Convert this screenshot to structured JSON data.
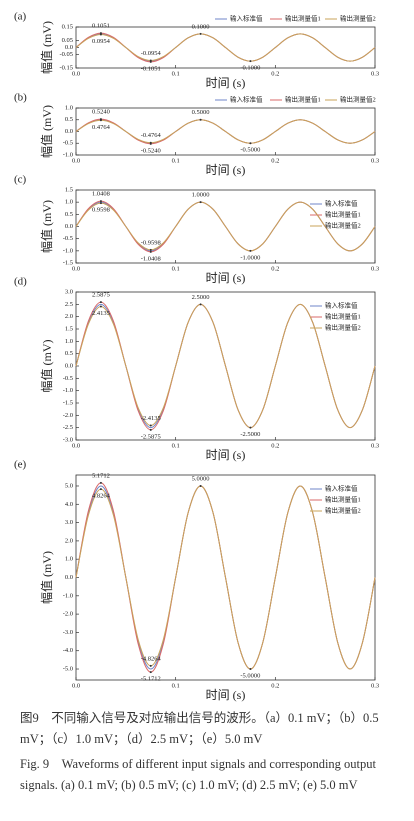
{
  "chart_data": [
    {
      "type": "line",
      "panel": "(a)",
      "xlabel": "时间 (s)",
      "ylabel": "幅值 (mV)",
      "legend": "top",
      "xlim": [
        0,
        0.3
      ],
      "ylim": [
        -0.15,
        0.15
      ],
      "xticks": [
        {
          "value": 0,
          "label": "0.0"
        },
        0.1,
        0.2,
        0.3
      ],
      "yticks": [
        -0.15,
        {
          "value": -0.05,
          "label": "-0.05"
        },
        {
          "value": 0,
          "label": "0.0"
        },
        0.05,
        0.15
      ],
      "x": [
        0,
        0.0125,
        0.025,
        0.0375,
        0.05,
        0.0625,
        0.075,
        0.0875,
        0.1,
        0.1125,
        0.125,
        0.1375,
        0.15,
        0.1625,
        0.175,
        0.1875,
        0.2,
        0.2125,
        0.225,
        0.2375,
        0.25,
        0.2625,
        0.275,
        0.2875,
        0.3
      ],
      "series": [
        {
          "name": "输入标准值",
          "color": "#6f86c9",
          "values": [
            0,
            0.0707,
            0.1,
            0.0707,
            0,
            -0.0707,
            -0.1,
            -0.0707,
            0,
            0.0707,
            0.1,
            0.0707,
            0,
            -0.0707,
            -0.1,
            -0.0707,
            0,
            0.0707,
            0.1,
            0.0707,
            0,
            -0.0707,
            -0.1,
            -0.0707,
            0
          ]
        },
        {
          "name": "输出测量值1",
          "color": "#d9696a",
          "values": [
            0,
            0.0743,
            0.1051,
            0.0743,
            0,
            -0.0743,
            -0.1051,
            -0.0743,
            0,
            0.0707,
            0.1,
            0.0707,
            0,
            -0.0707,
            -0.1,
            -0.0707,
            0,
            0.0707,
            0.1,
            0.0707,
            0,
            -0.0707,
            -0.1,
            -0.0707,
            0
          ]
        },
        {
          "name": "输出测量值2",
          "color": "#c9a35a",
          "values": [
            0,
            0.0675,
            0.0954,
            0.0675,
            0,
            -0.0675,
            -0.0954,
            -0.0675,
            0,
            0.0707,
            0.1,
            0.0707,
            0,
            -0.0707,
            -0.1,
            -0.0707,
            0,
            0.0707,
            0.1,
            0.0707,
            0,
            -0.0707,
            -0.1,
            -0.0707,
            0
          ]
        }
      ],
      "annotations": [
        {
          "x": 0.025,
          "value": 0.1051,
          "label": "0.1051"
        },
        {
          "x": 0.025,
          "value": 0.0954,
          "label": "0.0954"
        },
        {
          "x": 0.075,
          "value": -0.0954,
          "label": "-0.0954"
        },
        {
          "x": 0.075,
          "value": -0.1051,
          "label": "-0.1051"
        },
        {
          "x": 0.125,
          "value": 0.1,
          "label": "0.1000"
        },
        {
          "x": 0.175,
          "value": -0.1,
          "label": "-0.1000"
        }
      ]
    },
    {
      "type": "line",
      "panel": "(b)",
      "xlabel": "时间 (s)",
      "ylabel": "幅值 (mV)",
      "legend": "top",
      "xlim": [
        0,
        0.3
      ],
      "ylim": [
        -1,
        1
      ],
      "xticks": [
        {
          "value": 0,
          "label": "0.0"
        },
        0.1,
        0.2,
        0.3
      ],
      "yticks": [
        {
          "value": -1,
          "label": "-1.0"
        },
        -0.5,
        {
          "value": 0,
          "label": "0.0"
        },
        0.5,
        {
          "value": 1,
          "label": "1.0"
        }
      ],
      "x": [
        0,
        0.0125,
        0.025,
        0.0375,
        0.05,
        0.0625,
        0.075,
        0.0875,
        0.1,
        0.1125,
        0.125,
        0.1375,
        0.15,
        0.1625,
        0.175,
        0.1875,
        0.2,
        0.2125,
        0.225,
        0.2375,
        0.25,
        0.2625,
        0.275,
        0.2875,
        0.3
      ],
      "series": [
        {
          "name": "输入标准值",
          "color": "#6f86c9",
          "values": [
            0,
            0.3536,
            0.5,
            0.3536,
            0,
            -0.3536,
            -0.5,
            -0.3536,
            0,
            0.3536,
            0.5,
            0.3536,
            0,
            -0.3536,
            -0.5,
            -0.3536,
            0,
            0.3536,
            0.5,
            0.3536,
            0,
            -0.3536,
            -0.5,
            -0.3536,
            0
          ]
        },
        {
          "name": "输出测量值1",
          "color": "#d9696a",
          "values": [
            0,
            0.3705,
            0.524,
            0.3705,
            0,
            -0.3705,
            -0.524,
            -0.3705,
            0,
            0.3536,
            0.5,
            0.3536,
            0,
            -0.3536,
            -0.5,
            -0.3536,
            0,
            0.3536,
            0.5,
            0.3536,
            0,
            -0.3536,
            -0.5,
            -0.3536,
            0
          ]
        },
        {
          "name": "输出测量值2",
          "color": "#c9a35a",
          "values": [
            0,
            0.3369,
            0.4764,
            0.3369,
            0,
            -0.3369,
            -0.4764,
            -0.3369,
            0,
            0.3536,
            0.5,
            0.3536,
            0,
            -0.3536,
            -0.5,
            -0.3536,
            0,
            0.3536,
            0.5,
            0.3536,
            0,
            -0.3536,
            -0.5,
            -0.3536,
            0
          ]
        }
      ],
      "annotations": [
        {
          "x": 0.025,
          "value": 0.524,
          "label": "0.5240"
        },
        {
          "x": 0.025,
          "value": 0.4764,
          "label": "0.4764"
        },
        {
          "x": 0.075,
          "value": -0.4764,
          "label": "-0.4764"
        },
        {
          "x": 0.075,
          "value": -0.524,
          "label": "-0.5240"
        },
        {
          "x": 0.125,
          "value": 0.5,
          "label": "0.5000"
        },
        {
          "x": 0.175,
          "value": -0.5,
          "label": "-0.5000"
        }
      ]
    },
    {
      "type": "line",
      "panel": "(c)",
      "xlabel": "时间 (s)",
      "ylabel": "幅值 (mV)",
      "legend": "right",
      "xlim": [
        0,
        0.3
      ],
      "ylim": [
        -1.5,
        1.5
      ],
      "xticks": [
        {
          "value": 0,
          "label": "0.0"
        },
        0.1,
        0.2,
        0.3
      ],
      "yticks": [
        -1.5,
        {
          "value": -1,
          "label": "-1.0"
        },
        -0.5,
        {
          "value": 0,
          "label": "0.0"
        },
        0.5,
        {
          "value": 1,
          "label": "1.0"
        },
        1.5
      ],
      "x": [
        0,
        0.0125,
        0.025,
        0.0375,
        0.05,
        0.0625,
        0.075,
        0.0875,
        0.1,
        0.1125,
        0.125,
        0.1375,
        0.15,
        0.1625,
        0.175,
        0.1875,
        0.2,
        0.2125,
        0.225,
        0.2375,
        0.25,
        0.2625,
        0.275,
        0.2875,
        0.3
      ],
      "series": [
        {
          "name": "输入标准值",
          "color": "#6f86c9",
          "values": [
            0,
            0.7071,
            1,
            0.7071,
            0,
            -0.7071,
            -1,
            -0.7071,
            0,
            0.7071,
            1,
            0.7071,
            0,
            -0.7071,
            -1,
            -0.7071,
            0,
            0.7071,
            1,
            0.7071,
            0,
            -0.7071,
            -1,
            -0.7071,
            0
          ]
        },
        {
          "name": "输出测量值1",
          "color": "#d9696a",
          "values": [
            0,
            0.736,
            1.0408,
            0.736,
            0,
            -0.736,
            -1.0408,
            -0.736,
            0,
            0.7071,
            1,
            0.7071,
            0,
            -0.7071,
            -1,
            -0.7071,
            0,
            0.7071,
            1,
            0.7071,
            0,
            -0.7071,
            -1,
            -0.7071,
            0
          ]
        },
        {
          "name": "输出测量值2",
          "color": "#c9a35a",
          "values": [
            0,
            0.6787,
            0.9598,
            0.6787,
            0,
            -0.6787,
            -0.9598,
            -0.6787,
            0,
            0.7071,
            1,
            0.7071,
            0,
            -0.7071,
            -1,
            -0.7071,
            0,
            0.7071,
            1,
            0.7071,
            0,
            -0.7071,
            -1,
            -0.7071,
            0
          ]
        }
      ],
      "annotations": [
        {
          "x": 0.025,
          "value": 1.0408,
          "label": "1.0408"
        },
        {
          "x": 0.025,
          "value": 0.9598,
          "label": "0.9598"
        },
        {
          "x": 0.075,
          "value": -0.9598,
          "label": "-0.9598"
        },
        {
          "x": 0.075,
          "value": -1.0408,
          "label": "-1.0408"
        },
        {
          "x": 0.125,
          "value": 1,
          "label": "1.0000"
        },
        {
          "x": 0.175,
          "value": -1,
          "label": "-1.0000"
        }
      ]
    },
    {
      "type": "line",
      "panel": "(d)",
      "xlabel": "时间 (s)",
      "ylabel": "幅值 (mV)",
      "legend": "right",
      "xlim": [
        0,
        0.3
      ],
      "ylim": [
        -3,
        3
      ],
      "xticks": [
        {
          "value": 0,
          "label": "0.0"
        },
        0.1,
        0.2,
        0.3
      ],
      "yticks": [
        {
          "value": -3,
          "label": "-3.0"
        },
        -2.5,
        {
          "value": -2,
          "label": "-2.0"
        },
        -1.5,
        {
          "value": -1,
          "label": "-1.0"
        },
        -0.5,
        {
          "value": 0,
          "label": "0.0"
        },
        0.5,
        {
          "value": 1,
          "label": "1.0"
        },
        1.5,
        {
          "value": 2,
          "label": "2.0"
        },
        2.5,
        {
          "value": 3,
          "label": "3.0"
        }
      ],
      "x": [
        0,
        0.0125,
        0.025,
        0.0375,
        0.05,
        0.0625,
        0.075,
        0.0875,
        0.1,
        0.1125,
        0.125,
        0.1375,
        0.15,
        0.1625,
        0.175,
        0.1875,
        0.2,
        0.2125,
        0.225,
        0.2375,
        0.25,
        0.2625,
        0.275,
        0.2875,
        0.3
      ],
      "series": [
        {
          "name": "输入标准值",
          "color": "#6f86c9",
          "values": [
            0,
            1.7678,
            2.5,
            1.7678,
            0,
            -1.7678,
            -2.5,
            -1.7678,
            0,
            1.7678,
            2.5,
            1.7678,
            0,
            -1.7678,
            -2.5,
            -1.7678,
            0,
            1.7678,
            2.5,
            1.7678,
            0,
            -1.7678,
            -2.5,
            -1.7678,
            0
          ]
        },
        {
          "name": "输出测量值1",
          "color": "#d9696a",
          "values": [
            0,
            1.8296,
            2.5875,
            1.8296,
            0,
            -1.8296,
            -2.5875,
            -1.8296,
            0,
            1.7678,
            2.5,
            1.7678,
            0,
            -1.7678,
            -2.5,
            -1.7678,
            0,
            1.7678,
            2.5,
            1.7678,
            0,
            -1.7678,
            -2.5,
            -1.7678,
            0
          ]
        },
        {
          "name": "输出测量值2",
          "color": "#c9a35a",
          "values": [
            0,
            1.7066,
            2.4135,
            1.7066,
            0,
            -1.7066,
            -2.4135,
            -1.7066,
            0,
            1.7678,
            2.5,
            1.7678,
            0,
            -1.7678,
            -2.5,
            -1.7678,
            0,
            1.7678,
            2.5,
            1.7678,
            0,
            -1.7678,
            -2.5,
            -1.7678,
            0
          ]
        }
      ],
      "annotations": [
        {
          "x": 0.025,
          "value": 2.5875,
          "label": "2.5875"
        },
        {
          "x": 0.025,
          "value": 2.4135,
          "label": "2.4135"
        },
        {
          "x": 0.075,
          "value": -2.4135,
          "label": "-2.4135"
        },
        {
          "x": 0.075,
          "value": -2.5875,
          "label": "-2.5875"
        },
        {
          "x": 0.125,
          "value": 2.5,
          "label": "2.5000"
        },
        {
          "x": 0.175,
          "value": -2.5,
          "label": "-2.5000"
        }
      ]
    },
    {
      "type": "line",
      "panel": "(e)",
      "xlabel": "时间 (s)",
      "ylabel": "幅值 (mV)",
      "legend": "right",
      "xlim": [
        0,
        0.3
      ],
      "ylim": [
        -5.6,
        5.6
      ],
      "xticks": [
        {
          "value": 0,
          "label": "0.0"
        },
        0.1,
        0.2,
        0.3
      ],
      "yticks": [
        {
          "value": -5,
          "label": "-5.0"
        },
        {
          "value": -4,
          "label": "-4.0"
        },
        {
          "value": -3,
          "label": "-3.0"
        },
        {
          "value": -2,
          "label": "-2.0"
        },
        {
          "value": -1,
          "label": "-1.0"
        },
        {
          "value": 0,
          "label": "0.0"
        },
        {
          "value": 1,
          "label": "1.0"
        },
        {
          "value": 2,
          "label": "2.0"
        },
        {
          "value": 3,
          "label": "3.0"
        },
        {
          "value": 4,
          "label": "4.0"
        },
        {
          "value": 5,
          "label": "5.0"
        }
      ],
      "x": [
        0,
        0.0125,
        0.025,
        0.0375,
        0.05,
        0.0625,
        0.075,
        0.0875,
        0.1,
        0.1125,
        0.125,
        0.1375,
        0.15,
        0.1625,
        0.175,
        0.1875,
        0.2,
        0.2125,
        0.225,
        0.2375,
        0.25,
        0.2625,
        0.275,
        0.2875,
        0.3
      ],
      "series": [
        {
          "name": "输入标准值",
          "color": "#6f86c9",
          "values": [
            0,
            3.5355,
            5,
            3.5355,
            0,
            -3.5355,
            -5,
            -3.5355,
            0,
            3.5355,
            5,
            3.5355,
            0,
            -3.5355,
            -5,
            -3.5355,
            0,
            3.5355,
            5,
            3.5355,
            0,
            -3.5355,
            -5,
            -3.5355,
            0
          ]
        },
        {
          "name": "输出测量值1",
          "color": "#d9696a",
          "values": [
            0,
            3.6566,
            5.1712,
            3.6566,
            0,
            -3.6566,
            -5.1712,
            -3.6566,
            0,
            3.5355,
            5,
            3.5355,
            0,
            -3.5355,
            -5,
            -3.5355,
            0,
            3.5355,
            5,
            3.5355,
            0,
            -3.5355,
            -5,
            -3.5355,
            0
          ]
        },
        {
          "name": "输出测量值2",
          "color": "#c9a35a",
          "values": [
            0,
            3.4128,
            4.8264,
            3.4128,
            0,
            -3.4128,
            -4.8264,
            -3.4128,
            0,
            3.5355,
            5,
            3.5355,
            0,
            -3.5355,
            -5,
            -3.5355,
            0,
            3.5355,
            5,
            3.5355,
            0,
            -3.5355,
            -5,
            -3.5355,
            0
          ]
        }
      ],
      "annotations": [
        {
          "x": 0.025,
          "value": 5.1712,
          "label": "5.1712"
        },
        {
          "x": 0.025,
          "value": 4.8264,
          "label": "4.8264"
        },
        {
          "x": 0.075,
          "value": -4.8264,
          "label": "-4.8264"
        },
        {
          "x": 0.075,
          "value": -5.1712,
          "label": "-5.1712"
        },
        {
          "x": 0.125,
          "value": 5,
          "label": "5.0000"
        },
        {
          "x": 0.175,
          "value": -5,
          "label": "-5.0000"
        }
      ]
    }
  ],
  "caption": [
    "图9　不同输入信号及对应输出信号的波形。（a）0.1 mV；（b）0.5 mV；（c）1.0 mV；（d）2.5 mV；（e）5.0 mV",
    "Fig. 9　Waveforms of different input signals and corresponding output signals. (a) 0.1 mV; (b) 0.5 mV; (c) 1.0 mV; (d) 2.5 mV; (e) 5.0 mV"
  ]
}
